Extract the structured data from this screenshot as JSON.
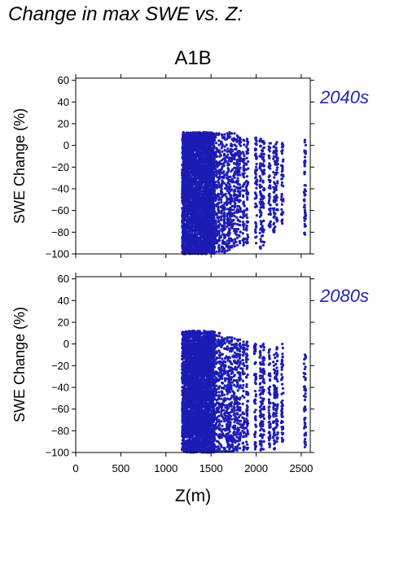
{
  "page_title": "Change in max SWE vs. Z:",
  "colors": {
    "points": "#1c1cb4",
    "period_label": "#2424b0",
    "axis": "#000000"
  },
  "chart_data": [
    {
      "type": "scatter",
      "title": "A1B",
      "period_label": "2040s",
      "xlabel": "",
      "ylabel": "SWE Change (%)",
      "xlim": [
        0,
        2600
      ],
      "ylim": [
        -100,
        62
      ],
      "xticks": [
        0,
        500,
        1000,
        1500,
        2000,
        2500
      ],
      "yticks": [
        60,
        40,
        20,
        0,
        -20,
        -40,
        -60,
        -80,
        -100
      ],
      "show_x_tick_labels": false,
      "grid": false,
      "point_color": "#1c1cb4",
      "dense_band": {
        "x_range": [
          1180,
          1540
        ],
        "y_range": [
          -100,
          12
        ]
      },
      "columns": [
        {
          "x": 1560,
          "y_range": [
            -98,
            11
          ]
        },
        {
          "x": 1590,
          "y_range": [
            -98,
            11
          ]
        },
        {
          "x": 1620,
          "y_range": [
            -98,
            10
          ]
        },
        {
          "x": 1650,
          "y_range": [
            -99,
            10
          ]
        },
        {
          "x": 1680,
          "y_range": [
            -97,
            11
          ]
        },
        {
          "x": 1705,
          "y_range": [
            -96,
            12
          ]
        },
        {
          "x": 1730,
          "y_range": [
            -94,
            11
          ]
        },
        {
          "x": 1760,
          "y_range": [
            -93,
            11
          ]
        },
        {
          "x": 1790,
          "y_range": [
            -92,
            9
          ]
        },
        {
          "x": 1820,
          "y_range": [
            -90,
            7
          ]
        },
        {
          "x": 1860,
          "y_range": [
            -92,
            5
          ]
        },
        {
          "x": 1900,
          "y_range": [
            -90,
            6
          ]
        },
        {
          "x": 2000,
          "y_range": [
            -90,
            7
          ]
        },
        {
          "x": 2050,
          "y_range": [
            -95,
            6
          ]
        },
        {
          "x": 2080,
          "y_range": [
            -92,
            4
          ]
        },
        {
          "x": 2150,
          "y_range": [
            -75,
            2
          ]
        },
        {
          "x": 2200,
          "y_range": [
            -80,
            -1
          ]
        },
        {
          "x": 2230,
          "y_range": [
            -70,
            3
          ]
        },
        {
          "x": 2290,
          "y_range": [
            -72,
            2
          ]
        },
        {
          "x": 2540,
          "y_range": [
            -82,
            5
          ]
        }
      ]
    },
    {
      "type": "scatter",
      "title": "",
      "period_label": "2080s",
      "xlabel": "Z(m)",
      "ylabel": "SWE Change (%)",
      "xlim": [
        0,
        2600
      ],
      "ylim": [
        -100,
        62
      ],
      "xticks": [
        0,
        500,
        1000,
        1500,
        2000,
        2500
      ],
      "yticks": [
        60,
        40,
        20,
        0,
        -20,
        -40,
        -60,
        -80,
        -100
      ],
      "show_x_tick_labels": true,
      "grid": false,
      "point_color": "#1c1cb4",
      "dense_band": {
        "x_range": [
          1180,
          1540
        ],
        "y_range": [
          -100,
          12
        ]
      },
      "columns": [
        {
          "x": 1560,
          "y_range": [
            -99,
            8
          ]
        },
        {
          "x": 1590,
          "y_range": [
            -99,
            10
          ]
        },
        {
          "x": 1620,
          "y_range": [
            -99,
            6
          ]
        },
        {
          "x": 1650,
          "y_range": [
            -99,
            5
          ]
        },
        {
          "x": 1680,
          "y_range": [
            -99,
            6
          ]
        },
        {
          "x": 1705,
          "y_range": [
            -99,
            6
          ]
        },
        {
          "x": 1730,
          "y_range": [
            -99,
            6
          ]
        },
        {
          "x": 1760,
          "y_range": [
            -98,
            5
          ]
        },
        {
          "x": 1790,
          "y_range": [
            -98,
            4
          ]
        },
        {
          "x": 1820,
          "y_range": [
            -96,
            4
          ]
        },
        {
          "x": 1860,
          "y_range": [
            -98,
            2
          ]
        },
        {
          "x": 1900,
          "y_range": [
            -97,
            2
          ]
        },
        {
          "x": 1990,
          "y_range": [
            -97,
            0
          ]
        },
        {
          "x": 2050,
          "y_range": [
            -98,
            -2
          ]
        },
        {
          "x": 2080,
          "y_range": [
            -97,
            0
          ]
        },
        {
          "x": 2150,
          "y_range": [
            -95,
            -5
          ]
        },
        {
          "x": 2200,
          "y_range": [
            -97,
            -10
          ]
        },
        {
          "x": 2230,
          "y_range": [
            -90,
            -3
          ]
        },
        {
          "x": 2290,
          "y_range": [
            -90,
            0
          ]
        },
        {
          "x": 2540,
          "y_range": [
            -95,
            -10
          ]
        }
      ]
    }
  ]
}
